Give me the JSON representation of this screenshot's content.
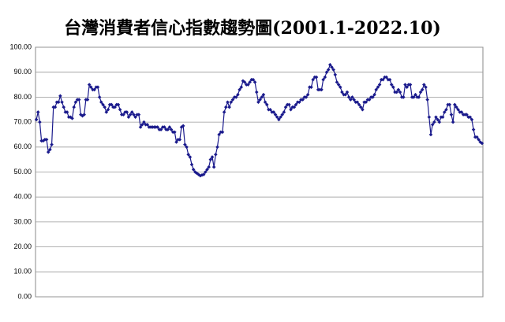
{
  "chart_data": {
    "type": "line",
    "title": "台灣消費者信心指數趨勢圖(2001.1-2022.10)",
    "color": "#1a1a8c",
    "grid": true,
    "ylim": [
      0,
      100
    ],
    "yticks": [
      {
        "value": 0,
        "label": "0.00"
      },
      {
        "value": 10,
        "label": "10.00"
      },
      {
        "value": 20,
        "label": "20.00"
      },
      {
        "value": 30,
        "label": "30.00"
      },
      {
        "value": 40,
        "label": "40.00"
      },
      {
        "value": 50,
        "label": "50.00"
      },
      {
        "value": 60,
        "label": "60.00"
      },
      {
        "value": 70,
        "label": "70.00"
      },
      {
        "value": 80,
        "label": "80.00"
      },
      {
        "value": 90,
        "label": "90.00"
      },
      {
        "value": 100,
        "label": "100.00"
      }
    ],
    "values": [
      71,
      74,
      70,
      62.5,
      62.5,
      63,
      63,
      58,
      59,
      61,
      76,
      76,
      78,
      78,
      80.5,
      78,
      76,
      74,
      74,
      72,
      72,
      71.5,
      76,
      78,
      79,
      79,
      73,
      72.5,
      73,
      79,
      79,
      85,
      84,
      83,
      83,
      84,
      84,
      80,
      78,
      77,
      76,
      74,
      75,
      77,
      77,
      76,
      76,
      77,
      77,
      75,
      73,
      73,
      74,
      74,
      72,
      73,
      74,
      73,
      72,
      73,
      73,
      68,
      69,
      70,
      69,
      69,
      68,
      68,
      68,
      68,
      68,
      68,
      67,
      67,
      68,
      68,
      67,
      67,
      68,
      67,
      66,
      66,
      62,
      63,
      63,
      68,
      68.5,
      61,
      60,
      57,
      56,
      53,
      51,
      50,
      49.5,
      49,
      48.5,
      48.8,
      49,
      50,
      51,
      52,
      55,
      56,
      52,
      57,
      60,
      65,
      66,
      66,
      74,
      76,
      78,
      76,
      78,
      79,
      80,
      80,
      81,
      83,
      84,
      86.5,
      86,
      85,
      85,
      86,
      87,
      87,
      86,
      82,
      78,
      79,
      80,
      81,
      78,
      77,
      75,
      75,
      74,
      74,
      73,
      72,
      71,
      72,
      73,
      74,
      76,
      77,
      77,
      75,
      76,
      76,
      77,
      78,
      78,
      79,
      79,
      80,
      80,
      81,
      84,
      84,
      87,
      88,
      88,
      83,
      83,
      83,
      87,
      88,
      90,
      91,
      93,
      92,
      91,
      89,
      86,
      85,
      84,
      82,
      81,
      81,
      82,
      80,
      79,
      80,
      79,
      78,
      78,
      77,
      76,
      75,
      78,
      78,
      79,
      79,
      80,
      80,
      81,
      83,
      84,
      85,
      87,
      87,
      88,
      88,
      87,
      87,
      85,
      84,
      82,
      82,
      83,
      82,
      80,
      80,
      85,
      84,
      85,
      85,
      80,
      80,
      81,
      80,
      80,
      82,
      83,
      85,
      84,
      79,
      72,
      65,
      69,
      70,
      72,
      71,
      70,
      72,
      72,
      74,
      75,
      77,
      77,
      73,
      70,
      77,
      76,
      75,
      74,
      74,
      73,
      73,
      73,
      72,
      72,
      71,
      67,
      64,
      64,
      63,
      62,
      61.5
    ]
  }
}
